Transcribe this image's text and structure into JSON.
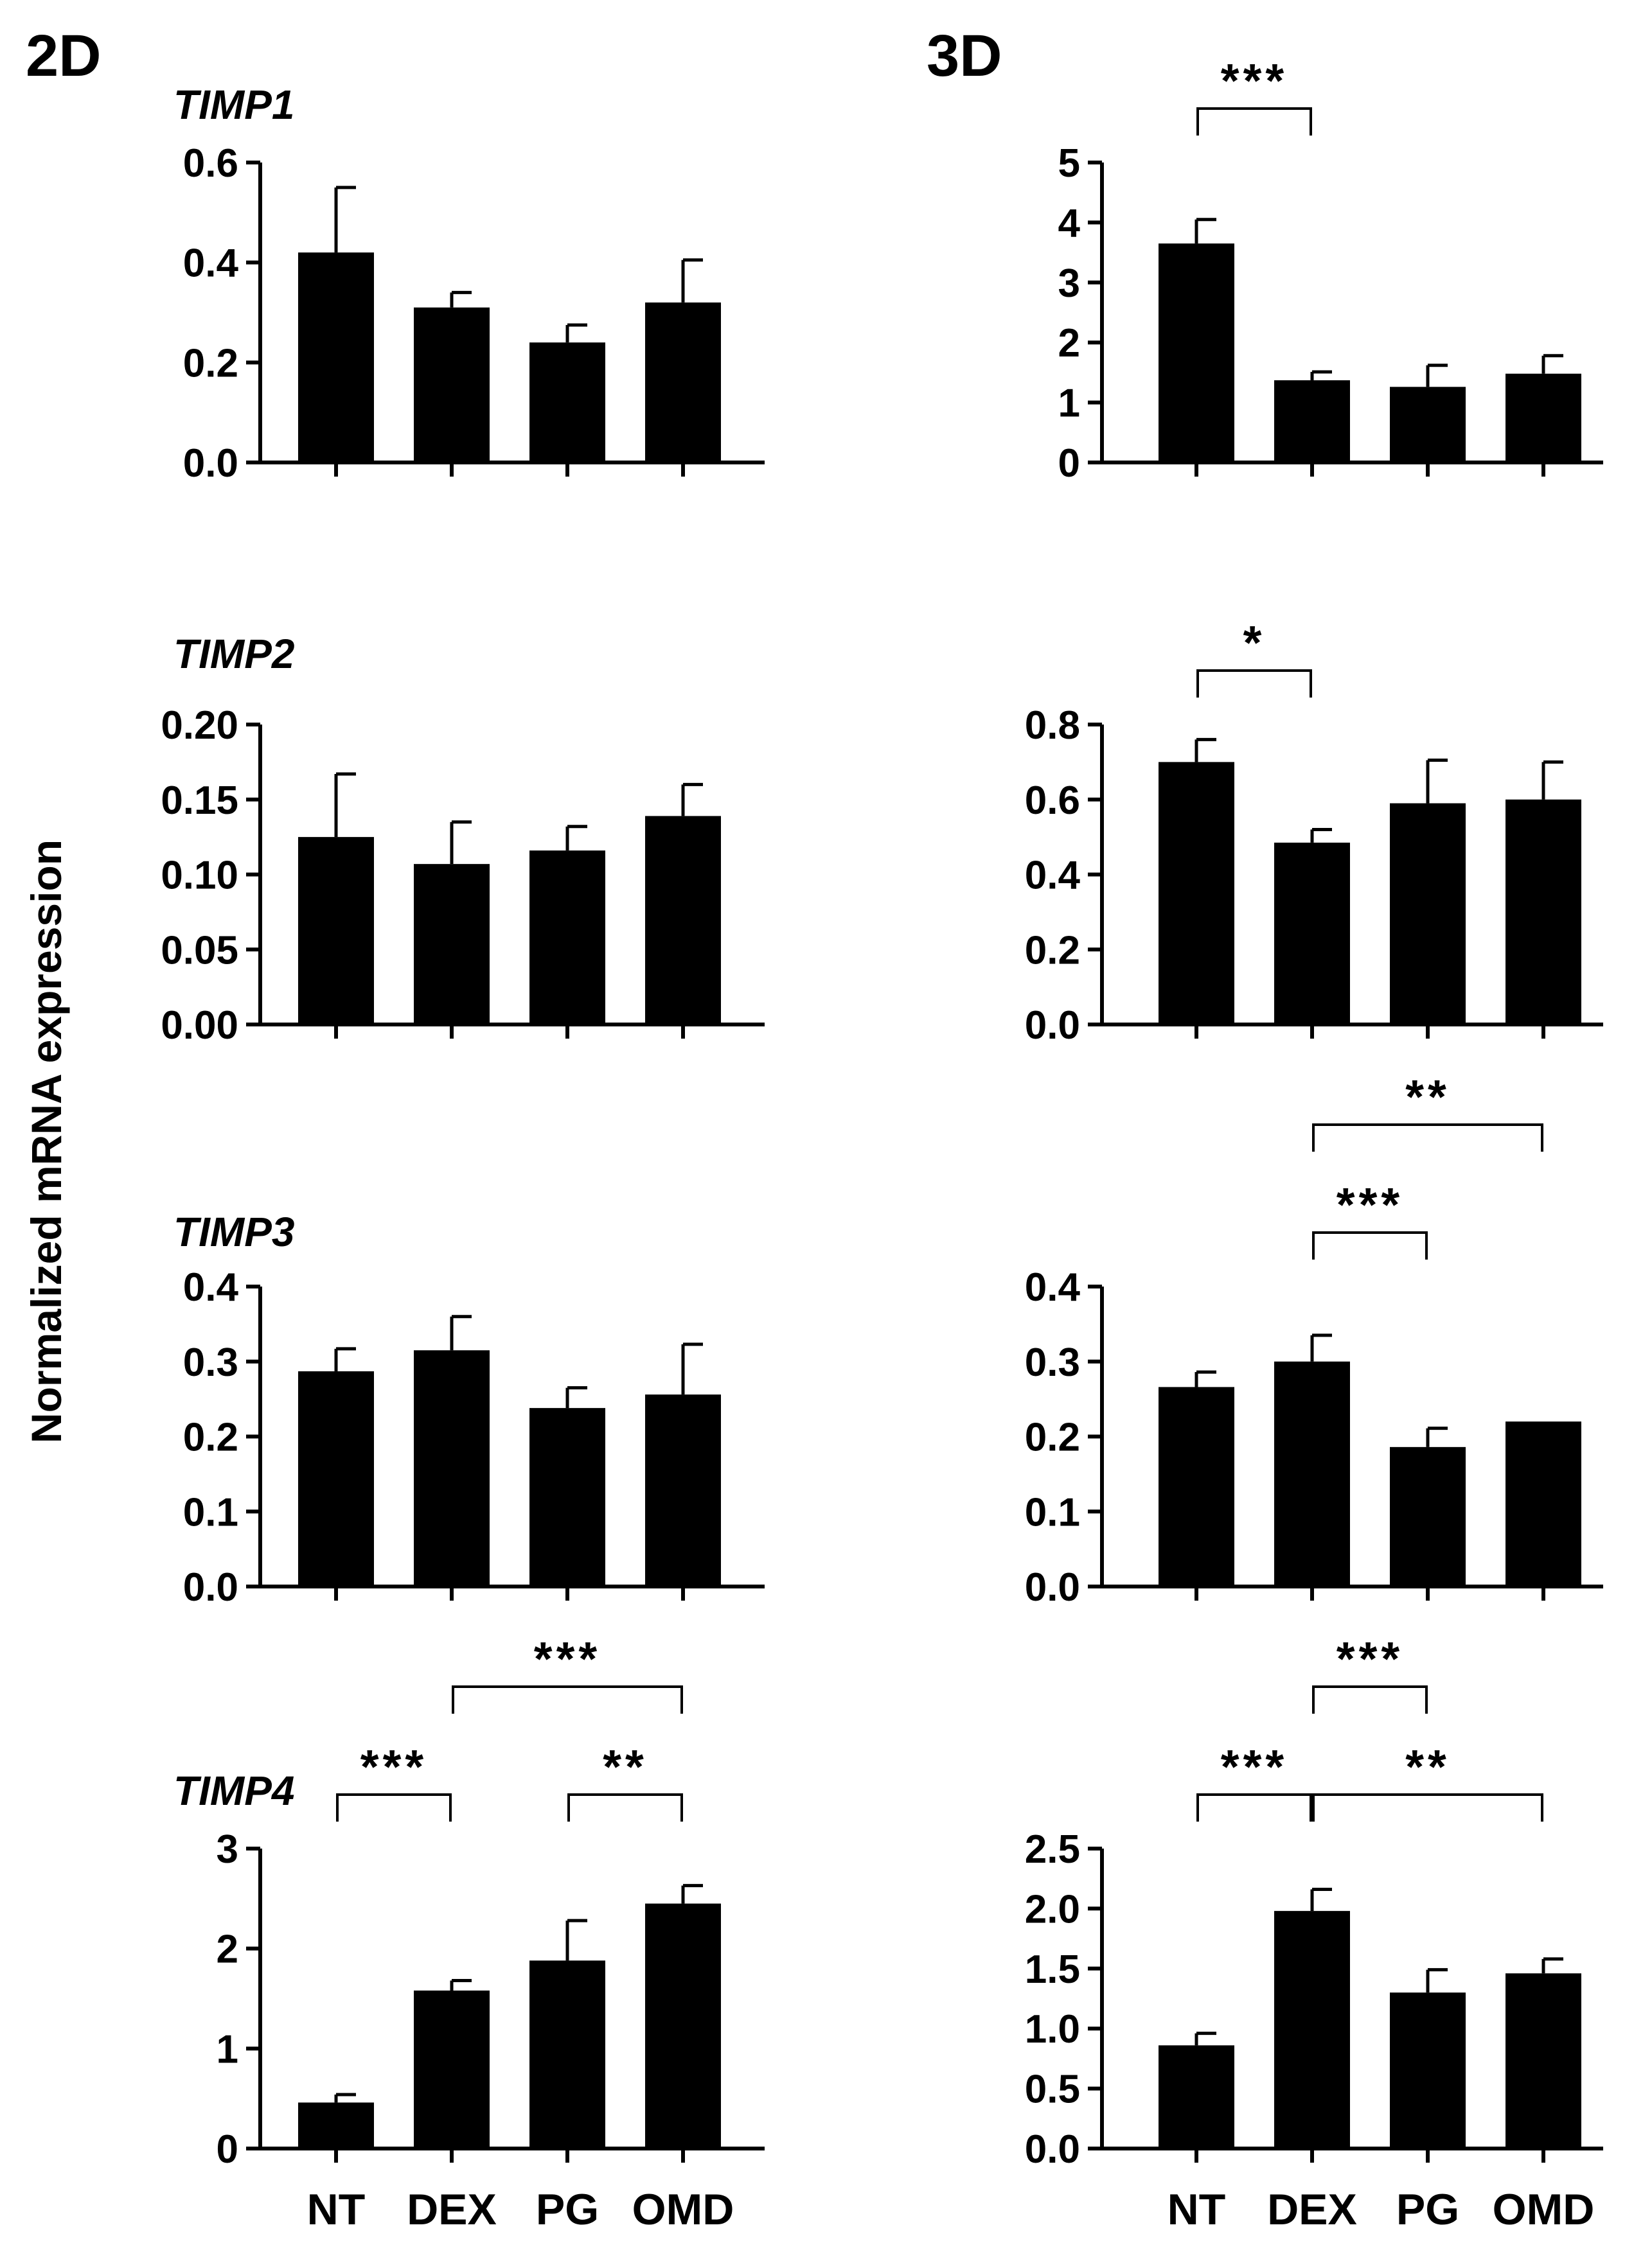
{
  "figure": {
    "ylabel": "Normalized mRNA expression",
    "col_labels": [
      "2D",
      "3D"
    ]
  },
  "chart_data": [
    {
      "type": "bar",
      "panel": "2D",
      "gene": "TIMP1",
      "categories": [
        "NT",
        "DEX",
        "PG",
        "OMD"
      ],
      "values": [
        0.42,
        0.31,
        0.24,
        0.32
      ],
      "errors": [
        0.13,
        0.03,
        0.035,
        0.085
      ],
      "ylim": [
        0,
        0.6
      ],
      "yticks": [
        "0.0",
        "0.2",
        "0.4",
        "0.6"
      ],
      "comparisons": []
    },
    {
      "type": "bar",
      "panel": "3D",
      "gene": "TIMP1",
      "categories": [
        "NT",
        "DEX",
        "PG",
        "OMD"
      ],
      "values": [
        3.65,
        1.37,
        1.26,
        1.48
      ],
      "errors": [
        0.4,
        0.14,
        0.36,
        0.3
      ],
      "ylim": [
        0,
        5
      ],
      "yticks": [
        "0",
        "1",
        "2",
        "3",
        "4",
        "5"
      ],
      "comparisons": [
        {
          "from": "NT",
          "to": "DEX",
          "label": "***",
          "level": 0
        }
      ]
    },
    {
      "type": "bar",
      "panel": "2D",
      "gene": "TIMP2",
      "categories": [
        "NT",
        "DEX",
        "PG",
        "OMD"
      ],
      "values": [
        0.125,
        0.107,
        0.116,
        0.139
      ],
      "errors": [
        0.042,
        0.028,
        0.016,
        0.021
      ],
      "ylim": [
        0,
        0.2
      ],
      "yticks": [
        "0.00",
        "0.05",
        "0.10",
        "0.15",
        "0.20"
      ],
      "comparisons": []
    },
    {
      "type": "bar",
      "panel": "3D",
      "gene": "TIMP2",
      "categories": [
        "NT",
        "DEX",
        "PG",
        "OMD"
      ],
      "values": [
        0.7,
        0.485,
        0.59,
        0.6
      ],
      "errors": [
        0.06,
        0.035,
        0.115,
        0.1
      ],
      "ylim": [
        0,
        0.8
      ],
      "yticks": [
        "0.0",
        "0.2",
        "0.4",
        "0.6",
        "0.8"
      ],
      "comparisons": [
        {
          "from": "NT",
          "to": "DEX",
          "label": "*",
          "level": 0
        }
      ]
    },
    {
      "type": "bar",
      "panel": "2D",
      "gene": "TIMP3",
      "categories": [
        "NT",
        "DEX",
        "PG",
        "OMD"
      ],
      "values": [
        0.287,
        0.315,
        0.238,
        0.256
      ],
      "errors": [
        0.03,
        0.045,
        0.027,
        0.067
      ],
      "ylim": [
        0,
        0.4
      ],
      "yticks": [
        "0.0",
        "0.1",
        "0.2",
        "0.3",
        "0.4"
      ],
      "comparisons": []
    },
    {
      "type": "bar",
      "panel": "3D",
      "gene": "TIMP3",
      "categories": [
        "NT",
        "DEX",
        "PG",
        "OMD"
      ],
      "values": [
        0.266,
        0.3,
        0.186,
        0.22
      ],
      "errors": [
        0.02,
        0.035,
        0.025,
        0.0
      ],
      "ylim": [
        0,
        0.4
      ],
      "yticks": [
        "0.0",
        "0.1",
        "0.2",
        "0.3",
        "0.4"
      ],
      "comparisons": [
        {
          "from": "DEX",
          "to": "PG",
          "label": "***",
          "level": 0
        },
        {
          "from": "DEX",
          "to": "OMD",
          "label": "**",
          "level": 1
        }
      ]
    },
    {
      "type": "bar",
      "panel": "2D",
      "gene": "TIMP4",
      "categories": [
        "NT",
        "DEX",
        "PG",
        "OMD"
      ],
      "values": [
        0.46,
        1.58,
        1.88,
        2.45
      ],
      "errors": [
        0.08,
        0.1,
        0.4,
        0.18
      ],
      "ylim": [
        0,
        3
      ],
      "yticks": [
        "0",
        "1",
        "2",
        "3"
      ],
      "comparisons": [
        {
          "from": "NT",
          "to": "DEX",
          "label": "***",
          "level": 0
        },
        {
          "from": "PG",
          "to": "OMD",
          "label": "**",
          "level": 0
        },
        {
          "from": "DEX",
          "to": "OMD",
          "label": "***",
          "level": 1
        }
      ]
    },
    {
      "type": "bar",
      "panel": "3D",
      "gene": "TIMP4",
      "categories": [
        "NT",
        "DEX",
        "PG",
        "OMD"
      ],
      "values": [
        0.86,
        1.98,
        1.3,
        1.46
      ],
      "errors": [
        0.1,
        0.18,
        0.19,
        0.12
      ],
      "ylim": [
        0,
        2.5
      ],
      "yticks": [
        "0.0",
        "0.5",
        "1.0",
        "1.5",
        "2.0",
        "2.5"
      ],
      "comparisons": [
        {
          "from": "NT",
          "to": "DEX",
          "label": "***",
          "level": 0
        },
        {
          "from": "DEX",
          "to": "OMD",
          "label": "**",
          "level": 0
        },
        {
          "from": "DEX",
          "to": "PG",
          "label": "***",
          "level": 1
        }
      ]
    }
  ]
}
